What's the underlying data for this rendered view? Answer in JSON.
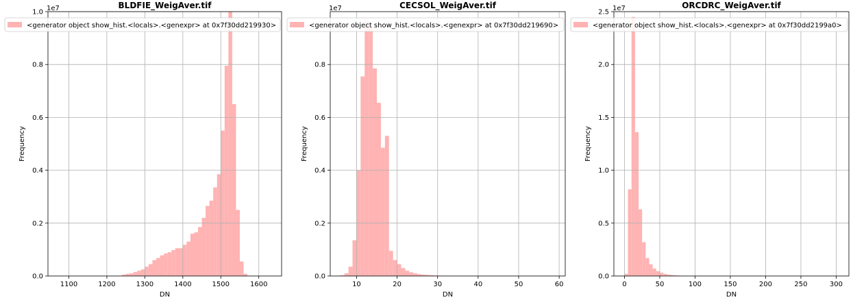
{
  "chart_data": [
    {
      "type": "bar",
      "title": "BLDFIE_WeigAver.tif",
      "xlabel": "DN",
      "ylabel": "Frequency",
      "offset_label": "1e7",
      "legend": {
        "label": "<generator object show_hist.<locals>.<genexpr> at 0x7f30dd219930>",
        "placement": "top-left"
      },
      "bar_color": "#ffb3b3",
      "grid": true,
      "xlim": [
        1045,
        1660
      ],
      "ylim": [
        0,
        1.0
      ],
      "xticks": [
        1100,
        1200,
        1300,
        1400,
        1500,
        1600
      ],
      "xtick_labels": [
        "1100",
        "1200",
        "1300",
        "1400",
        "1500",
        "1600"
      ],
      "yticks": [
        0,
        0.2,
        0.4,
        0.6,
        0.8,
        1.0
      ],
      "ytick_labels": [
        "0.0",
        "0.2",
        "0.4",
        "0.6",
        "0.8",
        "1.0"
      ],
      "bins": [
        {
          "x0": 1240,
          "x1": 1250,
          "value": 0.005
        },
        {
          "x0": 1250,
          "x1": 1260,
          "value": 0.008
        },
        {
          "x0": 1260,
          "x1": 1270,
          "value": 0.01
        },
        {
          "x0": 1270,
          "x1": 1280,
          "value": 0.015
        },
        {
          "x0": 1280,
          "x1": 1290,
          "value": 0.02
        },
        {
          "x0": 1290,
          "x1": 1300,
          "value": 0.025
        },
        {
          "x0": 1300,
          "x1": 1310,
          "value": 0.035
        },
        {
          "x0": 1310,
          "x1": 1320,
          "value": 0.045
        },
        {
          "x0": 1320,
          "x1": 1330,
          "value": 0.06
        },
        {
          "x0": 1330,
          "x1": 1340,
          "value": 0.068
        },
        {
          "x0": 1340,
          "x1": 1350,
          "value": 0.078
        },
        {
          "x0": 1350,
          "x1": 1360,
          "value": 0.085
        },
        {
          "x0": 1360,
          "x1": 1370,
          "value": 0.09
        },
        {
          "x0": 1370,
          "x1": 1380,
          "value": 0.098
        },
        {
          "x0": 1380,
          "x1": 1400,
          "value": 0.105
        },
        {
          "x0": 1400,
          "x1": 1410,
          "value": 0.118
        },
        {
          "x0": 1410,
          "x1": 1420,
          "value": 0.13
        },
        {
          "x0": 1420,
          "x1": 1430,
          "value": 0.16
        },
        {
          "x0": 1430,
          "x1": 1440,
          "value": 0.165
        },
        {
          "x0": 1440,
          "x1": 1450,
          "value": 0.185
        },
        {
          "x0": 1450,
          "x1": 1460,
          "value": 0.22
        },
        {
          "x0": 1460,
          "x1": 1470,
          "value": 0.265
        },
        {
          "x0": 1470,
          "x1": 1480,
          "value": 0.285
        },
        {
          "x0": 1480,
          "x1": 1490,
          "value": 0.335
        },
        {
          "x0": 1490,
          "x1": 1500,
          "value": 0.385
        },
        {
          "x0": 1500,
          "x1": 1510,
          "value": 0.55
        },
        {
          "x0": 1510,
          "x1": 1520,
          "value": 0.795
        },
        {
          "x0": 1520,
          "x1": 1530,
          "value": 1.02
        },
        {
          "x0": 1530,
          "x1": 1540,
          "value": 0.65
        },
        {
          "x0": 1540,
          "x1": 1550,
          "value": 0.25
        },
        {
          "x0": 1550,
          "x1": 1560,
          "value": 0.055
        },
        {
          "x0": 1560,
          "x1": 1570,
          "value": 0.008
        }
      ]
    },
    {
      "type": "bar",
      "title": "CECSOL_WeigAver.tif",
      "xlabel": "DN",
      "ylabel": "Frequency",
      "offset_label": "1e7",
      "legend": {
        "label": "<generator object show_hist.<locals>.<genexpr> at 0x7f30dd219690>",
        "placement": "top-left"
      },
      "bar_color": "#ffb3b3",
      "grid": true,
      "xlim": [
        3.5,
        61.5
      ],
      "ylim": [
        0,
        1.0
      ],
      "xticks": [
        10,
        20,
        30,
        40,
        50,
        60
      ],
      "xtick_labels": [
        "10",
        "20",
        "30",
        "40",
        "50",
        "60"
      ],
      "yticks": [
        0,
        0.2,
        0.4,
        0.6,
        0.8
      ],
      "ytick_labels": [
        "0.0",
        "0.2",
        "0.4",
        "0.6",
        "0.8"
      ],
      "bins": [
        {
          "x0": 6,
          "x1": 7,
          "value": 0.003
        },
        {
          "x0": 7,
          "x1": 8,
          "value": 0.01
        },
        {
          "x0": 8,
          "x1": 9,
          "value": 0.035
        },
        {
          "x0": 9,
          "x1": 10,
          "value": 0.135
        },
        {
          "x0": 10,
          "x1": 11,
          "value": 0.4
        },
        {
          "x0": 11,
          "x1": 12,
          "value": 0.755
        },
        {
          "x0": 12,
          "x1": 13,
          "value": 0.965
        },
        {
          "x0": 13,
          "x1": 14,
          "value": 0.94
        },
        {
          "x0": 14,
          "x1": 15,
          "value": 0.785
        },
        {
          "x0": 15,
          "x1": 16,
          "value": 0.655
        },
        {
          "x0": 16,
          "x1": 17,
          "value": 0.485
        },
        {
          "x0": 17,
          "x1": 18,
          "value": 0.53
        },
        {
          "x0": 18,
          "x1": 19,
          "value": 0.095
        },
        {
          "x0": 19,
          "x1": 20,
          "value": 0.06
        },
        {
          "x0": 20,
          "x1": 21,
          "value": 0.045
        },
        {
          "x0": 21,
          "x1": 22,
          "value": 0.03
        },
        {
          "x0": 22,
          "x1": 23,
          "value": 0.02
        },
        {
          "x0": 23,
          "x1": 24,
          "value": 0.014
        },
        {
          "x0": 24,
          "x1": 25,
          "value": 0.01
        },
        {
          "x0": 25,
          "x1": 26,
          "value": 0.007
        },
        {
          "x0": 26,
          "x1": 27,
          "value": 0.005
        },
        {
          "x0": 27,
          "x1": 28,
          "value": 0.004
        },
        {
          "x0": 28,
          "x1": 29,
          "value": 0.003
        },
        {
          "x0": 29,
          "x1": 30,
          "value": 0.002
        },
        {
          "x0": 30,
          "x1": 31,
          "value": 0.0015
        },
        {
          "x0": 31,
          "x1": 32,
          "value": 0.001
        }
      ]
    },
    {
      "type": "bar",
      "title": "ORCDRC_WeigAver.tif",
      "xlabel": "DN",
      "ylabel": "Frequency",
      "offset_label": "1e7",
      "legend": {
        "label": "<generator object show_hist.<locals>.<genexpr> at 0x7f30dd2199a0>",
        "placement": "top-left"
      },
      "bar_color": "#ffb3b3",
      "grid": true,
      "xlim": [
        -15,
        318
      ],
      "ylim": [
        0,
        2.5
      ],
      "xticks": [
        0,
        50,
        100,
        150,
        200,
        250,
        300
      ],
      "xtick_labels": [
        "0",
        "50",
        "100",
        "150",
        "200",
        "250",
        "300"
      ],
      "yticks": [
        0,
        0.5,
        1.0,
        1.5,
        2.0,
        2.5
      ],
      "ytick_labels": [
        "0.0",
        "0.5",
        "1.0",
        "1.5",
        "2.0",
        "2.5"
      ],
      "bins": [
        {
          "x0": 0,
          "x1": 5,
          "value": 0.02
        },
        {
          "x0": 5,
          "x1": 10,
          "value": 0.82
        },
        {
          "x0": 10,
          "x1": 15,
          "value": 2.45
        },
        {
          "x0": 15,
          "x1": 20,
          "value": 1.36
        },
        {
          "x0": 20,
          "x1": 25,
          "value": 0.63
        },
        {
          "x0": 25,
          "x1": 30,
          "value": 0.32
        },
        {
          "x0": 30,
          "x1": 35,
          "value": 0.17
        },
        {
          "x0": 35,
          "x1": 40,
          "value": 0.11
        },
        {
          "x0": 40,
          "x1": 45,
          "value": 0.07
        },
        {
          "x0": 45,
          "x1": 50,
          "value": 0.045
        },
        {
          "x0": 50,
          "x1": 55,
          "value": 0.03
        },
        {
          "x0": 55,
          "x1": 60,
          "value": 0.02
        },
        {
          "x0": 60,
          "x1": 65,
          "value": 0.013
        },
        {
          "x0": 65,
          "x1": 70,
          "value": 0.009
        },
        {
          "x0": 70,
          "x1": 75,
          "value": 0.006
        },
        {
          "x0": 75,
          "x1": 80,
          "value": 0.004
        }
      ]
    }
  ]
}
